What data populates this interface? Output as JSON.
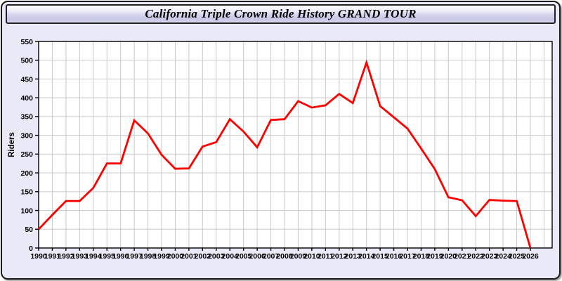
{
  "header": {
    "title": "California Triple Crown Ride History GRAND TOUR"
  },
  "chart_data": {
    "type": "line",
    "title": "California Triple Crown Ride History GRAND TOUR",
    "xlabel": "",
    "ylabel": "Riders",
    "x": [
      1990,
      1991,
      1992,
      1993,
      1994,
      1995,
      1996,
      1997,
      1998,
      1999,
      2000,
      2001,
      2002,
      2003,
      2004,
      2005,
      2006,
      2007,
      2008,
      2009,
      2010,
      2011,
      2012,
      2013,
      2014,
      2015,
      2016,
      2017,
      2018,
      2019,
      2020,
      2021,
      2022,
      2023,
      2024,
      2025,
      2026
    ],
    "series": [
      {
        "name": "Riders",
        "color": "#ff0000",
        "values": [
          50,
          88,
          125,
          125,
          160,
          225,
          225,
          340,
          305,
          248,
          211,
          212,
          270,
          282,
          343,
          310,
          268,
          341,
          343,
          391,
          374,
          380,
          410,
          386,
          494,
          378,
          348,
          318,
          265,
          210,
          135,
          127,
          85,
          128,
          126,
          125,
          0
        ]
      }
    ],
    "ylim": [
      0,
      550
    ],
    "ytick_step": 50,
    "ytick_labels": [
      "0",
      "50",
      "100",
      "150",
      "200",
      "250",
      "300",
      "350",
      "400",
      "450",
      "500",
      "550"
    ],
    "grid": true,
    "legend": "none"
  },
  "colors": {
    "page_bg": "#e9e9f8",
    "frame": "#1c1c1c",
    "header_border": "#222222",
    "header_top": "#fdfdff",
    "header_mid": "#d4d4ee",
    "header_bottom": "#c7c7e6",
    "plot_bg": "#ffffff",
    "grid": "#c9c9c9",
    "axis": "#000000",
    "line": "#ff0000"
  }
}
